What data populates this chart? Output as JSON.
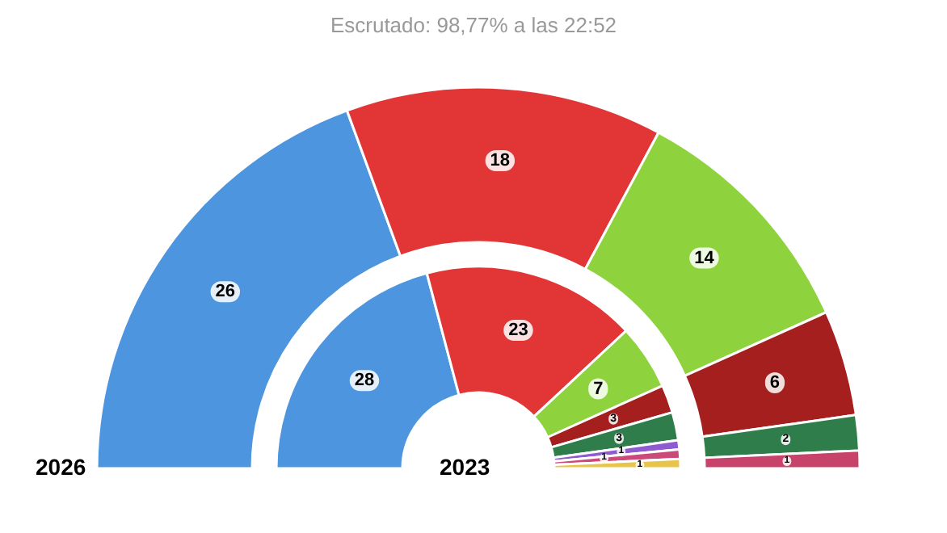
{
  "chart_data": {
    "type": "donut",
    "subtitle": "Escrutado: 98,77% a las 22:52",
    "data_labels": true,
    "series": [
      {
        "name": "2026",
        "values": [
          26,
          18,
          14,
          6,
          2,
          1
        ],
        "colors": [
          "#4d96df",
          "#e23636",
          "#8ed33e",
          "#a51f1f",
          "#2f7d4a",
          "#c8436a"
        ]
      },
      {
        "name": "2023",
        "values": [
          28,
          23,
          7,
          3,
          3,
          1,
          1,
          1
        ],
        "colors": [
          "#4d96df",
          "#e23636",
          "#8ed33e",
          "#a51f1f",
          "#2f7d4a",
          "#8e5bd0",
          "#cc4a7a",
          "#e8c44a"
        ]
      }
    ]
  }
}
